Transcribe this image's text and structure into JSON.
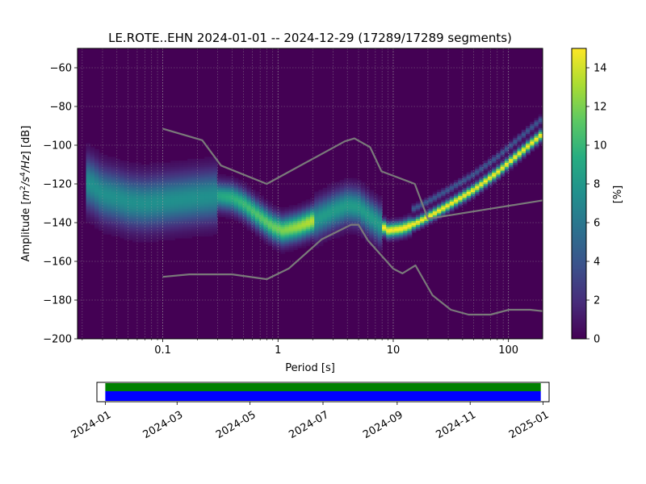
{
  "chart_data": [
    {
      "type": "heatmap",
      "title": "LE.ROTE..EHN   2024-01-01 -- 2024-12-29  (17289/17289 segments)",
      "xlabel": "Period [s]",
      "ylabel": "Amplitude [m²/s⁴/Hz] [dB]",
      "ylabel_parts": [
        "Amplitude [",
        "m",
        "2",
        "/s",
        "4",
        "/Hz",
        "] [dB]"
      ],
      "x_scale": "log",
      "xlim": [
        0.0182,
        198
      ],
      "ylim": [
        -200,
        -50
      ],
      "x_ticks": [
        0.1,
        1,
        10,
        100
      ],
      "x_tick_labels": [
        "0.1",
        "1",
        "10",
        "100"
      ],
      "y_ticks": [
        -200,
        -180,
        -160,
        -140,
        -120,
        -100,
        -80,
        -60
      ],
      "y_tick_labels": [
        "−200",
        "−180",
        "−160",
        "−140",
        "−120",
        "−100",
        "−80",
        "−60"
      ],
      "grid": true,
      "colormap": "viridis",
      "colorbar": {
        "label": "[%]",
        "range": [
          0,
          15
        ],
        "ticks": [
          0,
          2,
          4,
          6,
          8,
          10,
          12,
          14
        ],
        "tick_labels": [
          "0",
          "2",
          "4",
          "6",
          "8",
          "10",
          "12",
          "14"
        ]
      },
      "mode_curve": {
        "period": [
          0.02,
          0.025,
          0.03,
          0.04,
          0.05,
          0.07,
          0.1,
          0.14,
          0.2,
          0.3,
          0.4,
          0.5,
          0.7,
          0.9,
          1.1,
          1.5,
          2,
          3,
          4,
          5,
          7,
          9,
          12,
          16,
          20,
          30,
          50,
          80,
          120,
          198
        ],
        "amplitude": [
          -118,
          -121,
          -125,
          -127,
          -129,
          -130,
          -129,
          -128,
          -127,
          -126,
          -127,
          -130,
          -137,
          -142,
          -144,
          -142,
          -139,
          -134,
          -131,
          -132,
          -139,
          -144,
          -143,
          -140,
          -137,
          -131,
          -123,
          -114,
          -105,
          -94
        ]
      },
      "reference_curves": [
        {
          "period": [
            0.1,
            0.17,
            0.4,
            0.8,
            1.24,
            2.4,
            4.3,
            5,
            6,
            10,
            12,
            15.6,
            21.9,
            31.6,
            45,
            70,
            101,
            154,
            198
          ],
          "amplitude": [
            -168,
            -166.7,
            -166.7,
            -169.2,
            -163.7,
            -148.6,
            -141.1,
            -141.1,
            -149,
            -163.8,
            -166.2,
            -162.1,
            -177.5,
            -185,
            -187.5,
            -187.5,
            -185,
            -185,
            -185.7
          ]
        },
        {
          "period": [
            0.1,
            0.22,
            0.32,
            0.8,
            3.8,
            4.6,
            6.3,
            7.9,
            15.4,
            20,
            198
          ],
          "amplitude": [
            -91.5,
            -97.4,
            -110.5,
            -120,
            -98,
            -96.5,
            -101,
            -113.5,
            -120,
            -138,
            -128.5
          ]
        }
      ]
    },
    {
      "type": "timeline",
      "start": "2024-01-01",
      "end": "2024-12-29",
      "range": [
        "2023-12-25",
        "2025-01-06"
      ],
      "ticks": [
        "2024-01-01",
        "2024-03-01",
        "2024-05-01",
        "2024-07-01",
        "2024-09-01",
        "2024-11-01",
        "2025-01-01"
      ],
      "tick_labels": [
        "2024-01",
        "2024-03",
        "2024-05",
        "2024-07",
        "2024-09",
        "2024-11",
        "2025-01"
      ],
      "colors": {
        "top": "#008000",
        "bottom": "#0000ff"
      }
    }
  ]
}
